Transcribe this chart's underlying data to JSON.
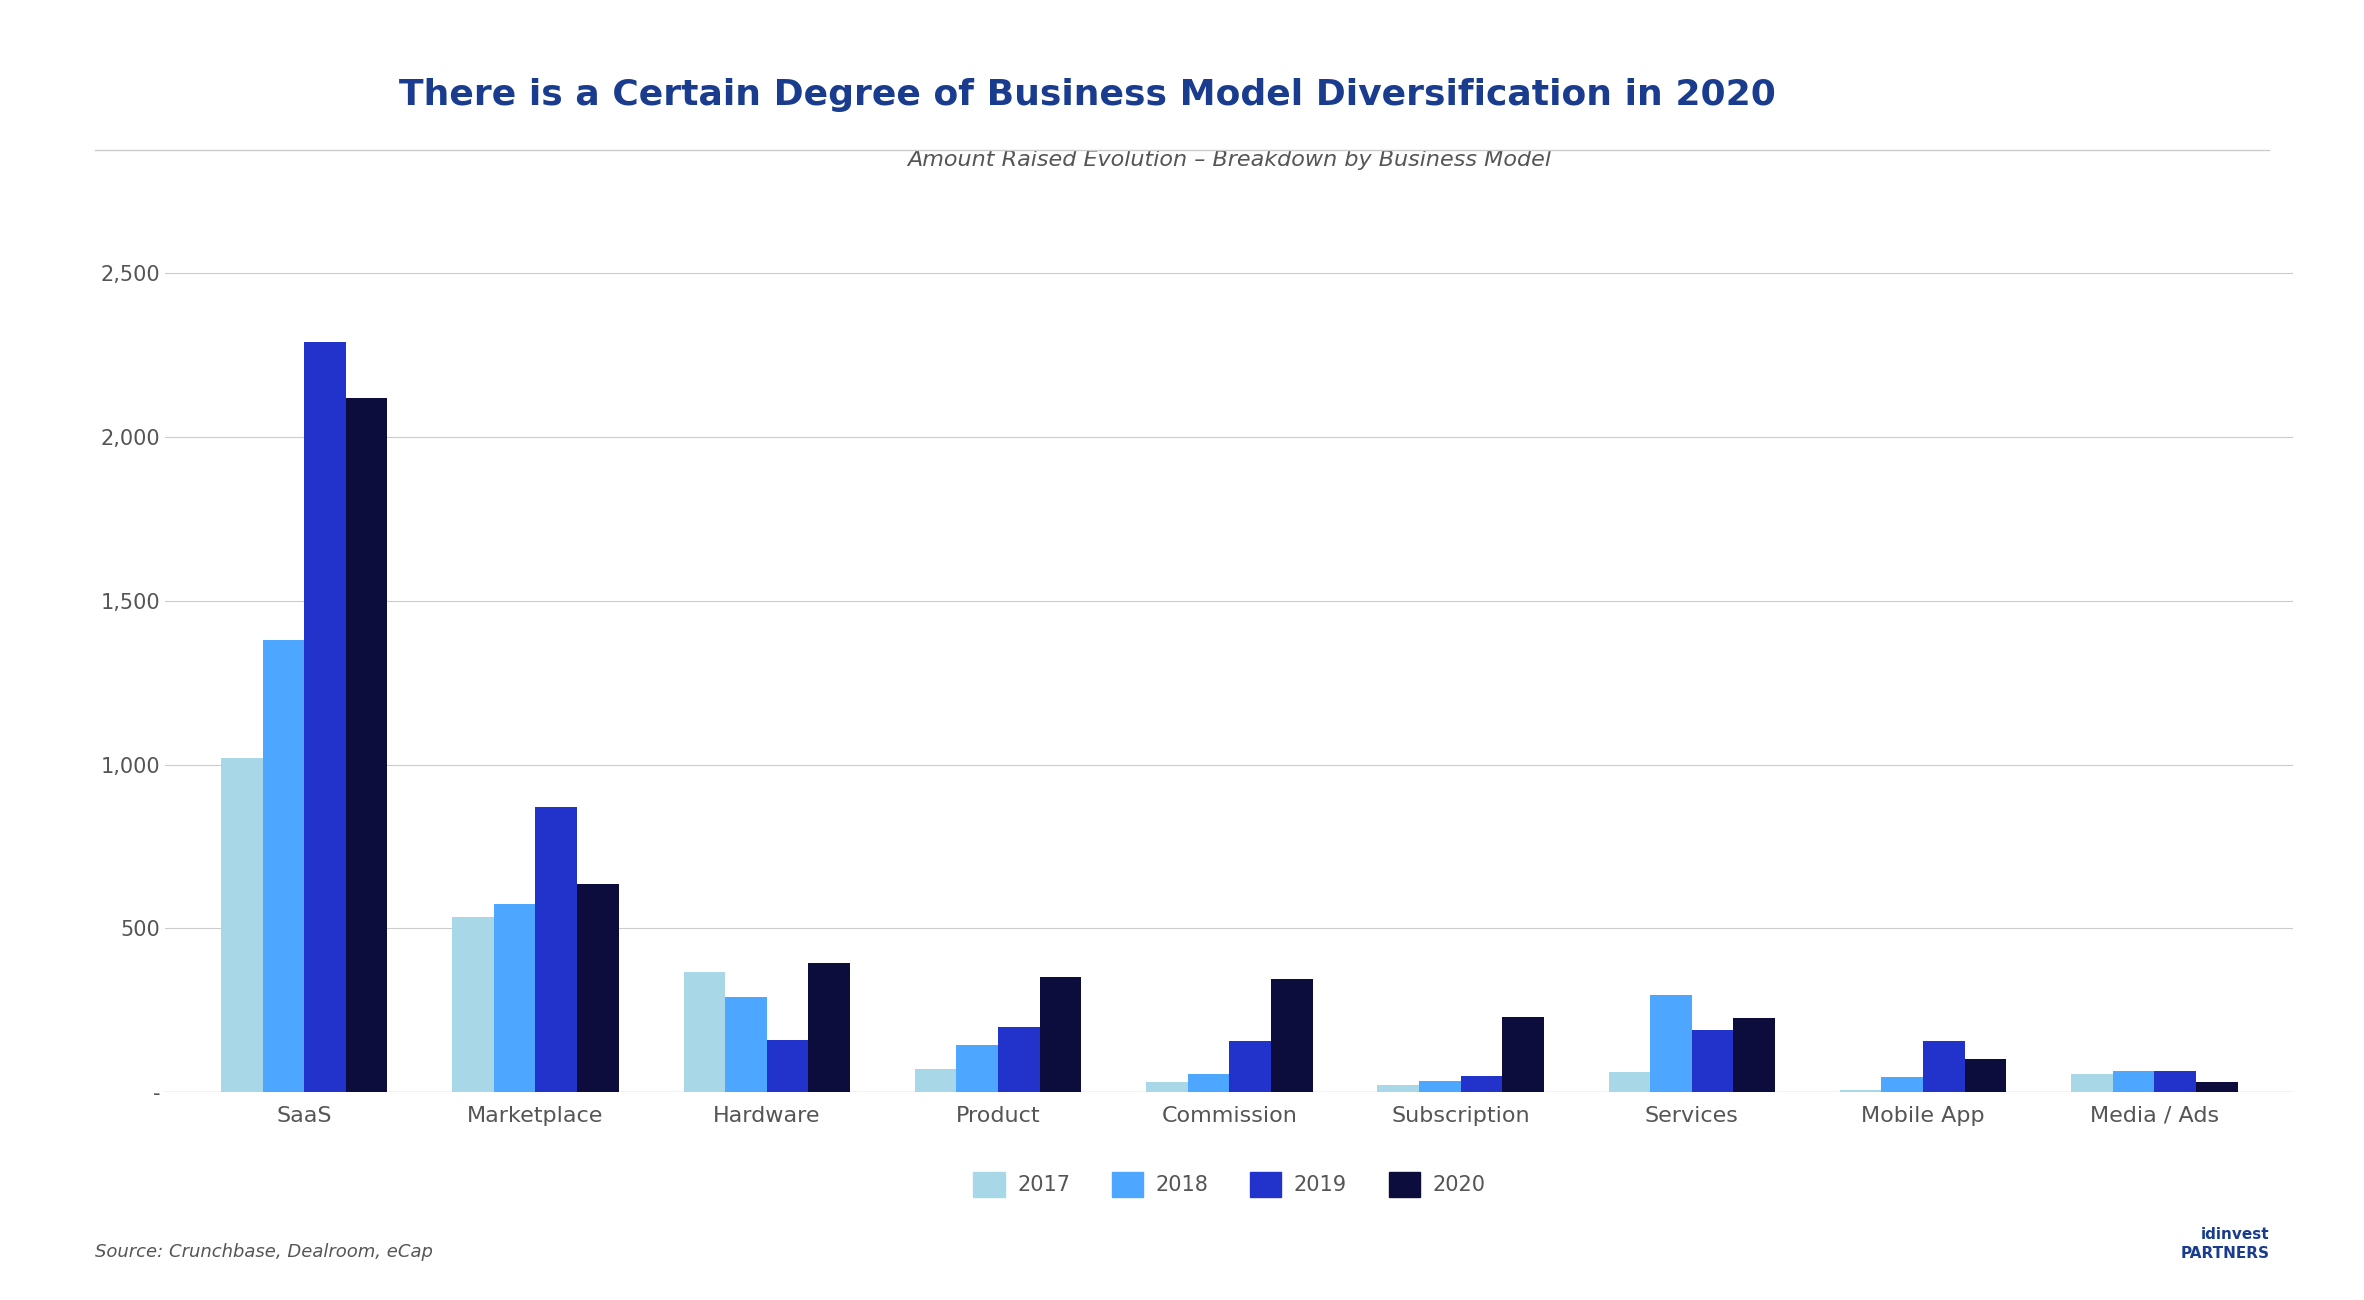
{
  "title": "There is a Certain Degree of Business Model Diversification in 2020",
  "subtitle": "Amount Raised Evolution – Breakdown by Business Model",
  "categories": [
    "SaaS",
    "Marketplace",
    "Hardware",
    "Product",
    "Commission",
    "Subscription",
    "Services",
    "Mobile App",
    "Media / Ads"
  ],
  "years": [
    "2017",
    "2018",
    "2019",
    "2020"
  ],
  "colors": [
    "#a8d8e8",
    "#4da6ff",
    "#2233cc",
    "#0d0d3d"
  ],
  "data": {
    "SaaS": [
      1020,
      1380,
      2290,
      2120
    ],
    "Marketplace": [
      535,
      575,
      870,
      635
    ],
    "Hardware": [
      365,
      290,
      160,
      395
    ],
    "Product": [
      70,
      145,
      200,
      350
    ],
    "Commission": [
      30,
      55,
      155,
      345
    ],
    "Subscription": [
      20,
      35,
      50,
      230
    ],
    "Services": [
      60,
      295,
      190,
      225
    ],
    "Mobile App": [
      5,
      45,
      155,
      100
    ],
    "Media / Ads": [
      55,
      65,
      65,
      30
    ]
  },
  "ylim": [
    0,
    2700
  ],
  "yticks": [
    0,
    500,
    1000,
    1500,
    2000,
    2500
  ],
  "ytick_labels": [
    "-",
    "500",
    "1,000",
    "1,500",
    "2,000",
    "2,500"
  ],
  "source_text": "Source: Crunchbase, Dealroom, eCap",
  "background_color": "#ffffff",
  "title_color": "#1a3c8f",
  "subtitle_color": "#555555",
  "axis_color": "#cccccc",
  "tick_label_color": "#555555",
  "bar_width": 0.18,
  "title_fontsize": 26,
  "subtitle_fontsize": 16,
  "legend_fontsize": 15,
  "tick_fontsize": 15,
  "category_fontsize": 16,
  "source_fontsize": 13
}
